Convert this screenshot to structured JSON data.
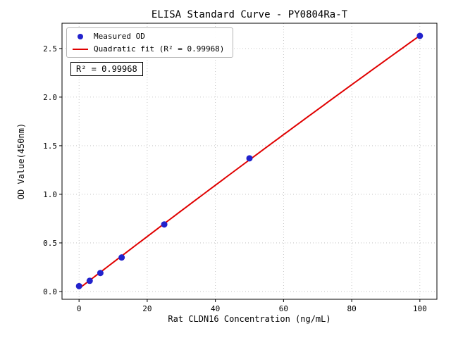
{
  "chart_data": {
    "type": "scatter",
    "title": "ELISA Standard Curve - PY0804Ra-T",
    "xlabel": "Rat CLDN16 Concentration (ng/mL)",
    "ylabel": "OD Value(450nm)",
    "x": [
      0,
      3.125,
      6.25,
      12.5,
      25,
      50,
      100
    ],
    "y": [
      0.055,
      0.11,
      0.19,
      0.35,
      0.69,
      1.37,
      2.63
    ],
    "fit_type": "quadratic",
    "r_squared": 0.99968,
    "r_squared_label": "R² = 0.99968",
    "legend": [
      {
        "label": "Measured OD",
        "marker": "point",
        "color": "#2222cc"
      },
      {
        "label": "Quadratic fit (R² = 0.99968)",
        "marker": "line",
        "color": "#e00000"
      }
    ],
    "legend_position": "upper left",
    "xticks": [
      0,
      20,
      40,
      60,
      80,
      100
    ],
    "yticks": [
      0.0,
      0.5,
      1.0,
      1.5,
      2.0,
      2.5
    ],
    "xlim": [
      -5,
      105
    ],
    "ylim": [
      -0.08,
      2.76
    ],
    "grid": true,
    "grid_style": "dotted",
    "point_color": "#2222cc",
    "line_color": "#e00000"
  }
}
